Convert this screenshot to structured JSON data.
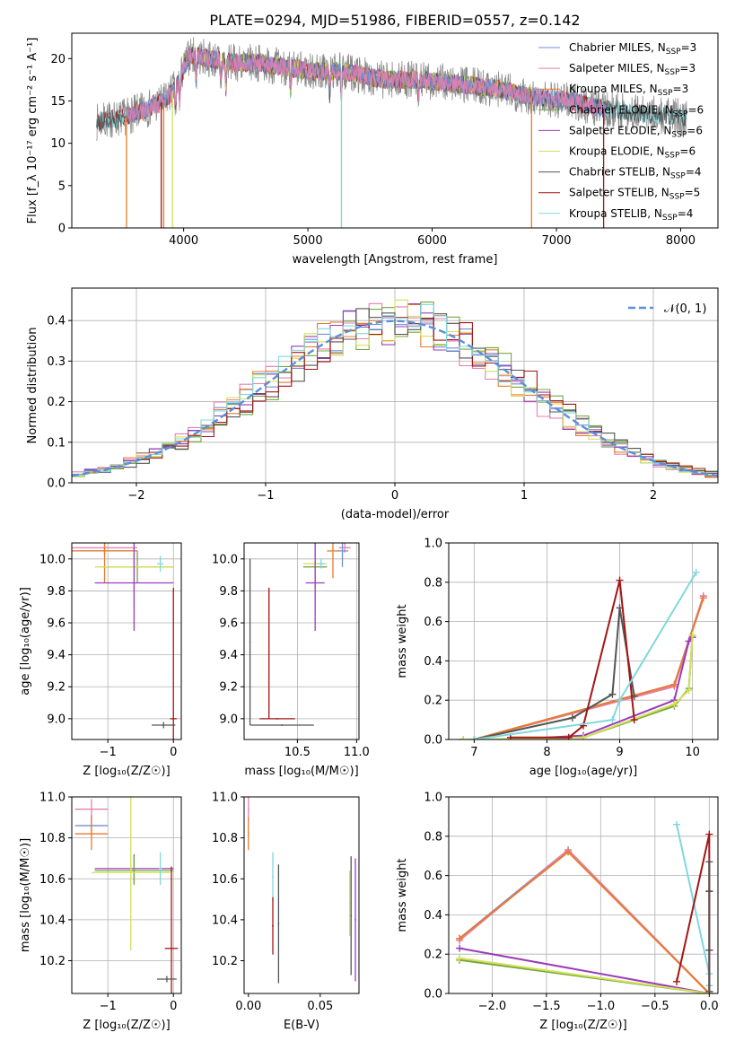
{
  "figure_title": "PLATE=0294, MJD=51986, FIBERID=0557, z=0.142",
  "colors": {
    "chabrier_miles": "#6f8fd8",
    "salpeter_miles": "#e47fb0",
    "kroupa_miles": "#e87b2d",
    "chabrier_elodie": "#74a83c",
    "salpeter_elodie": "#9a3cb8",
    "kroupa_elodie": "#d4e05a",
    "chabrier_stelib": "#555555",
    "salpeter_stelib": "#a31515",
    "kroupa_stelib": "#7fd8dc",
    "normal": "#5b8fd9",
    "data_gray": "#8a8a8a",
    "grid": "#b0b0b0"
  },
  "chart_data": [
    {
      "id": "spectrum",
      "type": "line",
      "title": "PLATE=0294, MJD=51986, FIBERID=0557, z=0.142",
      "xlabel": "wavelength [Angstrom, rest frame]",
      "ylabel": "Flux [f_λ 10⁻¹⁷ erg cm⁻² s⁻¹ A⁻¹]",
      "xlim": [
        3100,
        8300
      ],
      "ylim": [
        0,
        23
      ],
      "xticks": [
        4000,
        5000,
        6000,
        7000,
        8000
      ],
      "yticks": [
        0,
        5,
        10,
        15,
        20
      ],
      "grid": false,
      "legend_position": "top-right",
      "legend": [
        {
          "label": "Chabrier MILES, N",
          "sub": "SSP",
          "eq": "=3",
          "color_key": "chabrier_miles"
        },
        {
          "label": "Salpeter MILES, N",
          "sub": "SSP",
          "eq": "=3",
          "color_key": "salpeter_miles"
        },
        {
          "label": "Kroupa MILES, N",
          "sub": "SSP",
          "eq": "=3",
          "color_key": "kroupa_miles"
        },
        {
          "label": "Chabrier ELODIE, N",
          "sub": "SSP",
          "eq": "=6",
          "color_key": "chabrier_elodie"
        },
        {
          "label": "Salpeter ELODIE, N",
          "sub": "SSP",
          "eq": "=6",
          "color_key": "salpeter_elodie"
        },
        {
          "label": "Kroupa ELODIE, N",
          "sub": "SSP",
          "eq": "=6",
          "color_key": "kroupa_elodie"
        },
        {
          "label": "Chabrier STELIB, N",
          "sub": "SSP",
          "eq": "=4",
          "color_key": "chabrier_stelib"
        },
        {
          "label": "Salpeter STELIB, N",
          "sub": "SSP",
          "eq": "=5",
          "color_key": "salpeter_stelib"
        },
        {
          "label": "Kroupa STELIB, N",
          "sub": "SSP",
          "eq": "=4",
          "color_key": "kroupa_stelib"
        }
      ],
      "continuum": [
        [
          3300,
          12.5
        ],
        [
          3500,
          13
        ],
        [
          3700,
          14
        ],
        [
          3850,
          15
        ],
        [
          3950,
          17
        ],
        [
          4050,
          20.5
        ],
        [
          4200,
          20
        ],
        [
          4400,
          19.5
        ],
        [
          4600,
          19.5
        ],
        [
          4800,
          19
        ],
        [
          5000,
          18.5
        ],
        [
          5300,
          18.5
        ],
        [
          5600,
          17.5
        ],
        [
          5900,
          17.5
        ],
        [
          6200,
          17
        ],
        [
          6500,
          16.5
        ],
        [
          6800,
          15.5
        ],
        [
          7100,
          15
        ],
        [
          7400,
          14
        ],
        [
          7700,
          13.5
        ],
        [
          8050,
          13
        ]
      ],
      "drops": [
        {
          "x": 3540,
          "color_key": "kroupa_miles"
        },
        {
          "x": 3820,
          "color_key": "salpeter_stelib"
        },
        {
          "x": 3840,
          "color_key": "kroupa_miles"
        },
        {
          "x": 3910,
          "color_key": "kroupa_elodie"
        },
        {
          "x": 5270,
          "color_key": "kroupa_stelib"
        },
        {
          "x": 6800,
          "color_key": "kroupa_miles"
        },
        {
          "x": 7380,
          "color_key": "salpeter_stelib"
        }
      ]
    },
    {
      "id": "residuals",
      "type": "line",
      "xlabel": "(data-model)/error",
      "ylabel": "Normed distribution",
      "xlim": [
        -2.5,
        2.5
      ],
      "ylim": [
        0,
        0.48
      ],
      "xticks": [
        -2,
        -1,
        0,
        1,
        2
      ],
      "yticks": [
        0.0,
        0.1,
        0.2,
        0.3,
        0.4
      ],
      "grid": true,
      "legend_position": "top-right",
      "legend": [
        {
          "label": "𝒩(0, 1)",
          "color_key": "normal"
        }
      ]
    },
    {
      "id": "age_vs_Z",
      "type": "scatter",
      "xlabel": "Z [log₁₀(Z/Z☉)]",
      "ylabel": "age  [log₁₀(age/yr)]",
      "xlim": [
        -1.55,
        0.12
      ],
      "ylim": [
        8.87,
        10.1
      ],
      "xticks": [
        -1,
        0
      ],
      "yticks": [
        9.0,
        9.2,
        9.4,
        9.6,
        9.8,
        10.0
      ],
      "grid": true,
      "points": [
        {
          "color_key": "salpeter_miles",
          "x": -1.05,
          "xerr": 0.5,
          "y": 10.07,
          "yerr": 0.03
        },
        {
          "color_key": "chabrier_miles",
          "x": -1.05,
          "xerr": 0.5,
          "y": 10.05,
          "yerr": 0.03
        },
        {
          "color_key": "kroupa_miles",
          "x": -1.05,
          "xerr": 0.5,
          "y": 10.05,
          "yerr": 0.2
        },
        {
          "color_key": "chabrier_elodie",
          "x": -0.55,
          "xerr": 0.55,
          "y": 9.95,
          "yerr": 0.1
        },
        {
          "color_key": "kroupa_elodie",
          "x": -0.6,
          "xerr": 0.6,
          "y": 9.95,
          "yerr": 0.25
        },
        {
          "color_key": "salpeter_elodie",
          "x": -0.6,
          "xerr": 0.6,
          "y": 9.85,
          "yerr": 0.3
        },
        {
          "color_key": "kroupa_stelib",
          "x": -0.2,
          "xerr": 0.05,
          "y": 9.97,
          "yerr": 0.05
        },
        {
          "color_key": "salpeter_stelib",
          "x": 0.0,
          "xerr": 0.05,
          "y": 9.0,
          "yerr": 0.82
        },
        {
          "color_key": "chabrier_stelib",
          "x": -0.15,
          "xerr": 0.18,
          "y": 8.96,
          "yerr": 0.02
        }
      ]
    },
    {
      "id": "age_vs_mass",
      "type": "scatter",
      "xlabel": "mass [log₁₀(M/M☉)]",
      "ylabel": "",
      "xlim": [
        10.05,
        11.02
      ],
      "ylim": [
        8.87,
        10.1
      ],
      "xticks": [
        10.5,
        11.0
      ],
      "yticks": [
        9.0,
        9.2,
        9.4,
        9.6,
        9.8,
        10.0
      ],
      "grid": true,
      "points": [
        {
          "color_key": "salpeter_miles",
          "x": 10.9,
          "xerr": 0.05,
          "y": 10.07,
          "yerr": 0.03
        },
        {
          "color_key": "chabrier_miles",
          "x": 10.88,
          "xerr": 0.05,
          "y": 10.05,
          "yerr": 0.1
        },
        {
          "color_key": "kroupa_miles",
          "x": 10.8,
          "xerr": 0.05,
          "y": 10.05,
          "yerr": 0.17
        },
        {
          "color_key": "chabrier_elodie",
          "x": 10.65,
          "xerr": 0.1,
          "y": 9.95,
          "yerr": 0.1
        },
        {
          "color_key": "kroupa_elodie",
          "x": 10.65,
          "xerr": 0.1,
          "y": 9.97,
          "yerr": 0.25
        },
        {
          "color_key": "salpeter_elodie",
          "x": 10.65,
          "xerr": 0.08,
          "y": 9.85,
          "yerr": 0.3
        },
        {
          "color_key": "kroupa_stelib",
          "x": 10.7,
          "xerr": 0.03,
          "y": 9.97,
          "yerr": 0.03
        },
        {
          "color_key": "chabrier_stelib",
          "x": 10.1,
          "xerr": 0.005,
          "y": 9.48,
          "yerr": 0.52
        },
        {
          "color_key": "salpeter_stelib",
          "x": 10.26,
          "xerr": 0.005,
          "y": 9.41,
          "yerr": 0.41
        },
        {
          "color_key": "salpeter_stelib",
          "x": 10.33,
          "xerr": 0.15,
          "y": 9.0,
          "yerr": 0.005
        },
        {
          "color_key": "chabrier_stelib",
          "x": 10.37,
          "xerr": 0.27,
          "y": 8.96,
          "yerr": 0.005
        }
      ]
    },
    {
      "id": "mass_weight_vs_age",
      "type": "line",
      "xlabel": "age  [log₁₀(age/yr)]",
      "ylabel": "mass weight",
      "xlim": [
        6.65,
        10.35
      ],
      "ylim": [
        0,
        1.0
      ],
      "xticks": [
        7,
        8,
        9,
        10
      ],
      "yticks": [
        0.0,
        0.2,
        0.4,
        0.6,
        0.8,
        1.0
      ],
      "grid": true,
      "series": [
        {
          "color_key": "chabrier_miles",
          "x": [
            7.0,
            9.75,
            10.15
          ],
          "y": [
            0.0,
            0.28,
            0.73
          ]
        },
        {
          "color_key": "salpeter_miles",
          "x": [
            7.0,
            9.75,
            10.15
          ],
          "y": [
            0.0,
            0.27,
            0.73
          ]
        },
        {
          "color_key": "kroupa_miles",
          "x": [
            7.0,
            9.75,
            10.15
          ],
          "y": [
            0.0,
            0.28,
            0.72
          ]
        },
        {
          "color_key": "chabrier_elodie",
          "x": [
            6.85,
            7.2,
            8.5,
            9.75,
            9.95,
            10.0
          ],
          "y": [
            0.0,
            0.0,
            0.01,
            0.17,
            0.26,
            0.53
          ]
        },
        {
          "color_key": "salpeter_elodie",
          "x": [
            6.85,
            7.5,
            8.5,
            9.75,
            9.95,
            10.0
          ],
          "y": [
            0.0,
            0.0,
            0.02,
            0.2,
            0.5,
            0.52
          ]
        },
        {
          "color_key": "kroupa_elodie",
          "x": [
            6.85,
            7.2,
            8.5,
            9.75,
            9.95,
            10.0
          ],
          "y": [
            0.0,
            0.0,
            0.01,
            0.18,
            0.25,
            0.53
          ]
        },
        {
          "color_key": "chabrier_stelib",
          "x": [
            7.0,
            8.35,
            8.9,
            9.0,
            9.2
          ],
          "y": [
            0.0,
            0.11,
            0.23,
            0.67,
            0.22
          ]
        },
        {
          "color_key": "salpeter_stelib",
          "x": [
            7.5,
            8.3,
            8.5,
            9.0,
            9.2
          ],
          "y": [
            0.01,
            0.01,
            0.07,
            0.81,
            0.1
          ]
        },
        {
          "color_key": "kroupa_stelib",
          "x": [
            7.0,
            8.9,
            9.0,
            10.05
          ],
          "y": [
            0.0,
            0.1,
            0.2,
            0.85
          ]
        }
      ]
    },
    {
      "id": "mass_vs_Z",
      "type": "scatter",
      "xlabel": "Z [log₁₀(Z/Z☉)]",
      "ylabel": "mass [log₁₀(M/M☉)]",
      "xlim": [
        -1.55,
        0.12
      ],
      "ylim": [
        10.04,
        11.0
      ],
      "xticks": [
        -1,
        0
      ],
      "yticks": [
        10.2,
        10.4,
        10.6,
        10.8,
        11.0
      ],
      "grid": true,
      "points": [
        {
          "color_key": "salpeter_miles",
          "x": -1.25,
          "xerr": 0.25,
          "y": 10.94,
          "yerr": 0.05
        },
        {
          "color_key": "chabrier_miles",
          "x": -1.25,
          "xerr": 0.25,
          "y": 10.86,
          "yerr": 0.05
        },
        {
          "color_key": "kroupa_miles",
          "x": -1.25,
          "xerr": 0.25,
          "y": 10.82,
          "yerr": 0.08
        },
        {
          "color_key": "salpeter_elodie",
          "x": -0.6,
          "xerr": 0.6,
          "y": 10.65,
          "yerr": 0.07
        },
        {
          "color_key": "chabrier_elodie",
          "x": -0.6,
          "xerr": 0.6,
          "y": 10.64,
          "yerr": 0.07
        },
        {
          "color_key": "kroupa_elodie",
          "x": -0.65,
          "xerr": 0.6,
          "y": 10.63,
          "yerr": 0.38
        },
        {
          "color_key": "kroupa_stelib",
          "x": -0.2,
          "xerr": 0.02,
          "y": 10.65,
          "yerr": 0.08
        },
        {
          "color_key": "salpeter_stelib",
          "x": -0.03,
          "xerr": 0.1,
          "y": 10.26,
          "yerr": 0.4
        },
        {
          "color_key": "chabrier_stelib",
          "x": -0.1,
          "xerr": 0.15,
          "y": 10.11,
          "yerr": 0.015
        }
      ]
    },
    {
      "id": "mass_vs_EBV",
      "type": "scatter",
      "xlabel": "E(B-V)",
      "ylabel": "",
      "xlim": [
        -0.003,
        0.077
      ],
      "ylim": [
        10.04,
        11.0
      ],
      "xticks": [
        0.0,
        0.05
      ],
      "yticks": [
        10.2,
        10.4,
        10.6,
        10.8,
        11.0
      ],
      "grid": false,
      "points": [
        {
          "color_key": "salpeter_miles",
          "x": 0.0,
          "xerr": 0.0005,
          "y": 10.94,
          "yerr": 0.06
        },
        {
          "color_key": "kroupa_miles",
          "x": 0.0,
          "xerr": 0.0005,
          "y": 10.82,
          "yerr": 0.08
        },
        {
          "color_key": "kroupa_stelib",
          "x": 0.017,
          "xerr": 0.0005,
          "y": 10.61,
          "yerr": 0.12
        },
        {
          "color_key": "salpeter_stelib",
          "x": 0.017,
          "xerr": 0.0005,
          "y": 10.37,
          "yerr": 0.14
        },
        {
          "color_key": "chabrier_stelib",
          "x": 0.021,
          "xerr": 0.0005,
          "y": 10.38,
          "yerr": 0.29
        },
        {
          "color_key": "kroupa_elodie",
          "x": 0.0705,
          "xerr": 0.0005,
          "y": 10.48,
          "yerr": 0.16
        },
        {
          "color_key": "chabrier_stelib",
          "x": 0.0715,
          "xerr": 0.0005,
          "y": 10.42,
          "yerr": 0.29
        },
        {
          "color_key": "salpeter_elodie",
          "x": 0.0745,
          "xerr": 0.0005,
          "y": 10.4,
          "yerr": 0.3
        }
      ]
    },
    {
      "id": "mass_weight_vs_Z",
      "type": "line",
      "xlabel": "Z [log₁₀(Z/Z☉)]",
      "ylabel": "mass weight",
      "xlim": [
        -2.4,
        0.08
      ],
      "ylim": [
        0,
        1.0
      ],
      "xticks": [
        -2.0,
        -1.5,
        -1.0,
        -0.5,
        0.0
      ],
      "yticks": [
        0.0,
        0.2,
        0.4,
        0.6,
        0.8,
        1.0
      ],
      "grid": true,
      "series": [
        {
          "color_key": "chabrier_miles",
          "x": [
            -2.3,
            -1.3,
            0.0
          ],
          "y": [
            0.28,
            0.73,
            0.0
          ]
        },
        {
          "color_key": "salpeter_miles",
          "x": [
            -2.3,
            -1.3,
            0.0
          ],
          "y": [
            0.27,
            0.73,
            0.0
          ]
        },
        {
          "color_key": "kroupa_miles",
          "x": [
            -2.3,
            -1.3,
            0.0
          ],
          "y": [
            0.28,
            0.72,
            0.0
          ]
        },
        {
          "color_key": "chabrier_elodie",
          "x": [
            -2.3,
            0.0
          ],
          "y": [
            0.17,
            0.0
          ]
        },
        {
          "color_key": "salpeter_elodie",
          "x": [
            -2.3,
            0.0
          ],
          "y": [
            0.23,
            0.0
          ]
        },
        {
          "color_key": "kroupa_elodie",
          "x": [
            -2.3,
            0.0
          ],
          "y": [
            0.18,
            0.0
          ]
        },
        {
          "color_key": "kroupa_stelib",
          "x": [
            -0.3,
            0.0,
            0.0
          ],
          "y": [
            0.86,
            0.1,
            0.04
          ]
        },
        {
          "color_key": "salpeter_stelib",
          "x": [
            -0.3,
            0.0,
            0.0,
            0.0,
            0.0
          ],
          "y": [
            0.06,
            0.81,
            0.52,
            0.22,
            0.01
          ]
        },
        {
          "color_key": "chabrier_stelib",
          "x": [
            0.0,
            0.0,
            0.0,
            0.0
          ],
          "y": [
            0.67,
            0.52,
            0.22,
            0.01
          ]
        }
      ]
    }
  ]
}
